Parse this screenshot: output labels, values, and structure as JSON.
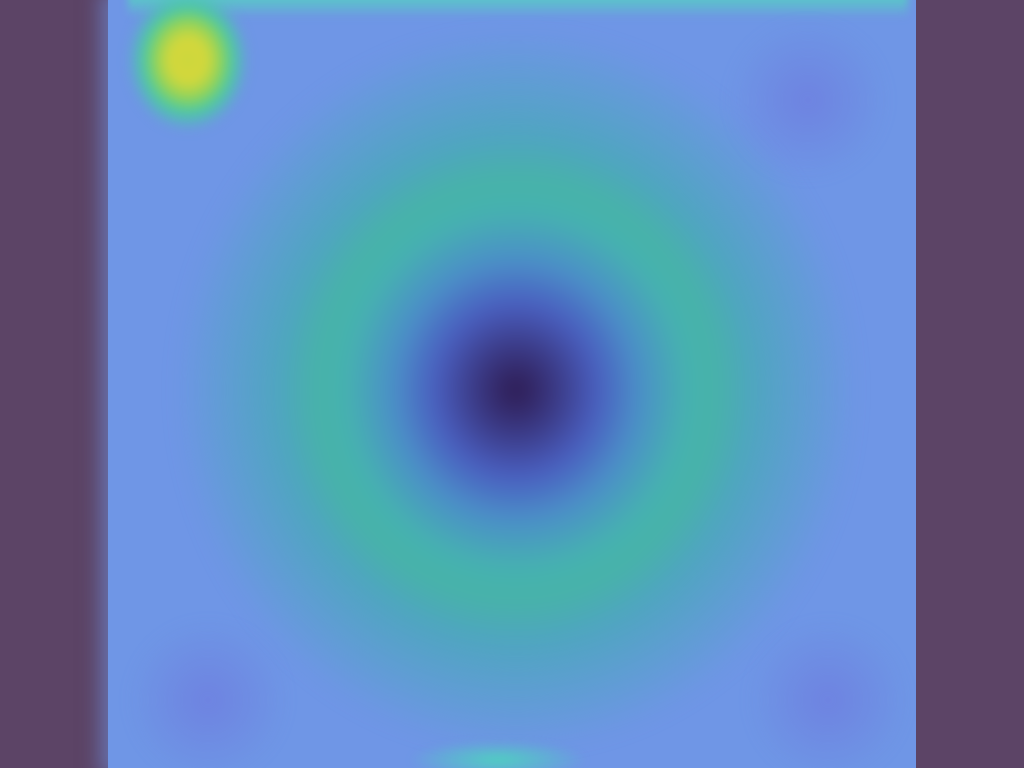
{
  "colors": {
    "background": "#5c4466",
    "field_base": "#6f96e6",
    "center_dark": "#2d1a50",
    "ring_teal": "#46b2b0",
    "hot_spot_yellow": "#d7d83a"
  }
}
